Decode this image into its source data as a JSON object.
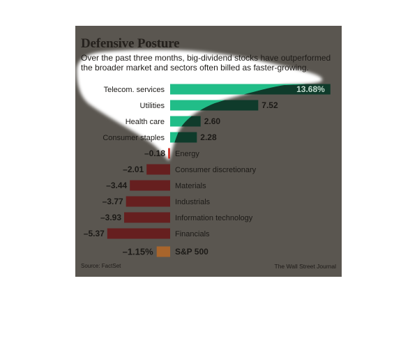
{
  "chart_data": {
    "type": "bar",
    "orientation": "horizontal",
    "title": "Defensive Posture",
    "subtitle": "Over the past three months, big-dividend stocks have outperformed the broader market and sectors often billed as faster-growing.",
    "categories": [
      "Telecom. services",
      "Utilities",
      "Health care",
      "Consumer staples",
      "Energy",
      "Consumer discretionary",
      "Materials",
      "Industrials",
      "Information technology",
      "Financials"
    ],
    "values": [
      13.68,
      7.52,
      2.6,
      2.28,
      -0.18,
      -2.01,
      -3.44,
      -3.77,
      -3.93,
      -5.37
    ],
    "value_labels": [
      "13.68%",
      "7.52",
      "2.60",
      "2.28",
      "–0.18",
      "–2.01",
      "–3.44",
      "–3.77",
      "–3.93",
      "–5.37"
    ],
    "benchmark": {
      "category": "S&P 500",
      "value": -1.15,
      "value_label": "–1.15%"
    },
    "grid": false,
    "legend": "none",
    "source": "Source: FactSet",
    "credit": "The Wall Street Journal",
    "colors": {
      "positive": "#0f3b2b",
      "positive_highlight": "#21bd88",
      "negative": "#661f1f",
      "negative_highlight": "#cf3a31",
      "benchmark": "#a8652c",
      "value_label_inside": "#c3dbce"
    }
  }
}
